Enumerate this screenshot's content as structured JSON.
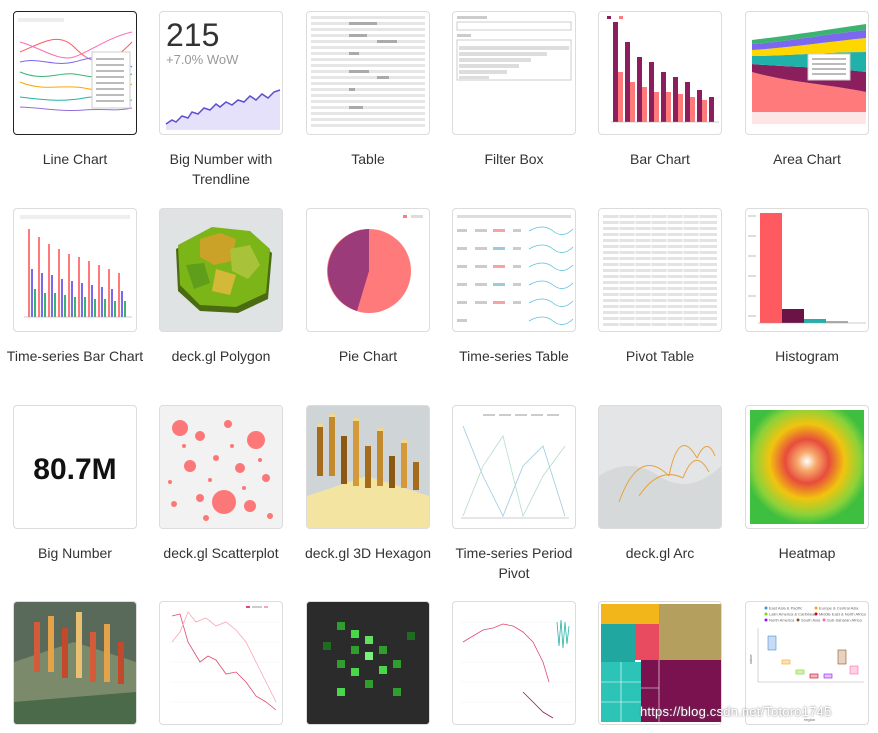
{
  "gallery": {
    "tiles": [
      {
        "id": "line-chart",
        "label": "Line Chart",
        "selected": true
      },
      {
        "id": "big-number-trendline",
        "label": "Big Number with Trendline",
        "big_value": "215",
        "delta": "+7.0% WoW"
      },
      {
        "id": "table",
        "label": "Table"
      },
      {
        "id": "filter-box",
        "label": "Filter Box"
      },
      {
        "id": "bar-chart",
        "label": "Bar Chart"
      },
      {
        "id": "area-chart",
        "label": "Area Chart"
      },
      {
        "id": "time-series-bar",
        "label": "Time-series Bar Chart"
      },
      {
        "id": "deckgl-polygon",
        "label": "deck.gl Polygon"
      },
      {
        "id": "pie-chart",
        "label": "Pie Chart"
      },
      {
        "id": "time-series-table",
        "label": "Time-series Table"
      },
      {
        "id": "pivot-table",
        "label": "Pivot Table"
      },
      {
        "id": "histogram",
        "label": "Histogram"
      },
      {
        "id": "big-number",
        "label": "Big Number",
        "big_value": "80.7M"
      },
      {
        "id": "deckgl-scatterplot",
        "label": "deck.gl Scatterplot"
      },
      {
        "id": "deckgl-3d-hexagon",
        "label": "deck.gl 3D Hexagon"
      },
      {
        "id": "time-series-period-pivot",
        "label": "Time-series Period Pivot"
      },
      {
        "id": "deckgl-arc",
        "label": "deck.gl Arc"
      },
      {
        "id": "heatmap",
        "label": "Heatmap"
      },
      {
        "id": "deckgl-grid",
        "label": ""
      },
      {
        "id": "line-multi",
        "label": ""
      },
      {
        "id": "deckgl-screengrid",
        "label": ""
      },
      {
        "id": "time-series-percent",
        "label": ""
      },
      {
        "id": "treemap",
        "label": ""
      },
      {
        "id": "box-plot",
        "label": "",
        "legend": [
          "East Asia & Pacific",
          "Europe & Central Asia",
          "Latin America & Caribbean",
          "Middle East & North Africa",
          "North America",
          "South Asia",
          "Sub-Saharan Africa"
        ],
        "ylabel": "value",
        "xlabel": "region"
      }
    ]
  },
  "watermark": "https://blog.csdn.net/Totoro1745",
  "colors": {
    "border": "#dcdcdc",
    "selected_border": "#222222",
    "label": "#333333",
    "accent_pink": "#ff7a7a",
    "accent_purple": "#8b1e5c"
  }
}
